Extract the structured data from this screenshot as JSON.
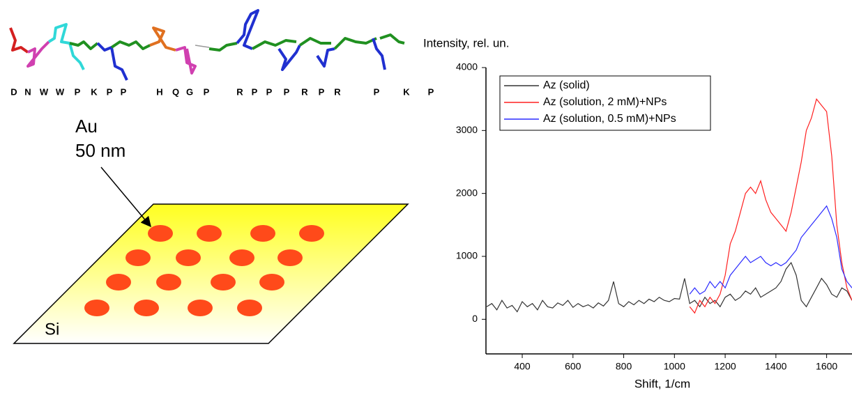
{
  "diagram": {
    "residues": [
      "D",
      "N",
      "W",
      "W",
      "P",
      "K",
      "P",
      "P",
      "H",
      "Q",
      "G",
      "P",
      "R",
      "P",
      "P",
      "P",
      "R",
      "P",
      "R",
      "P",
      "K",
      "P"
    ],
    "particle_label": "Au\n50 nm",
    "particle_label_lines": [
      "Au",
      "50 nm"
    ],
    "substrate_label": "Si"
  },
  "chart_data": {
    "type": "line",
    "y_label": "Intensity, rel. un.",
    "x_label": "Shift, 1/cm",
    "x": [
      260,
      280,
      300,
      320,
      340,
      360,
      380,
      400,
      420,
      440,
      460,
      480,
      500,
      520,
      540,
      560,
      580,
      600,
      620,
      640,
      660,
      680,
      700,
      720,
      740,
      760,
      780,
      800,
      820,
      840,
      860,
      880,
      900,
      920,
      940,
      960,
      980,
      1000,
      1020,
      1040,
      1060,
      1080,
      1100,
      1120,
      1140,
      1160,
      1180,
      1200,
      1220,
      1240,
      1260,
      1280,
      1300,
      1320,
      1340,
      1360,
      1380,
      1400,
      1420,
      1440,
      1460,
      1480,
      1500,
      1520,
      1540,
      1560,
      1580,
      1600,
      1620,
      1640,
      1660,
      1680,
      1700
    ],
    "series": [
      {
        "name": "Az (solid)",
        "color": "#333333",
        "values": [
          200,
          250,
          150,
          300,
          180,
          220,
          120,
          280,
          200,
          250,
          150,
          300,
          200,
          180,
          260,
          220,
          300,
          190,
          250,
          200,
          230,
          180,
          260,
          210,
          300,
          600,
          250,
          200,
          280,
          230,
          300,
          250,
          320,
          280,
          350,
          300,
          280,
          330,
          320,
          650,
          250,
          300,
          200,
          350,
          250,
          300,
          200,
          350,
          400,
          300,
          350,
          450,
          400,
          500,
          350,
          400,
          450,
          500,
          600,
          800,
          900,
          700,
          300,
          200,
          350,
          500,
          650,
          550,
          400,
          350,
          500,
          450,
          300
        ]
      },
      {
        "name": "Az (solution, 2 mM)+NPs",
        "color": "#ff2020",
        "values": [
          null,
          null,
          null,
          null,
          null,
          null,
          null,
          null,
          null,
          null,
          null,
          null,
          null,
          null,
          null,
          null,
          null,
          null,
          null,
          null,
          null,
          null,
          null,
          null,
          null,
          null,
          null,
          null,
          null,
          null,
          null,
          null,
          null,
          null,
          null,
          null,
          null,
          null,
          null,
          null,
          200,
          100,
          300,
          200,
          350,
          250,
          400,
          700,
          1200,
          1400,
          1700,
          2000,
          2100,
          2000,
          2200,
          1900,
          1700,
          1600,
          1500,
          1400,
          1700,
          2100,
          2500,
          3000,
          3200,
          3500,
          3400,
          3300,
          2600,
          1500,
          900,
          500,
          300
        ]
      },
      {
        "name": "Az (solution, 0.5 mM)+NPs",
        "color": "#2a2aff",
        "values": [
          null,
          null,
          null,
          null,
          null,
          null,
          null,
          null,
          null,
          null,
          null,
          null,
          null,
          null,
          null,
          null,
          null,
          null,
          null,
          null,
          null,
          null,
          null,
          null,
          null,
          null,
          null,
          null,
          null,
          null,
          null,
          null,
          null,
          null,
          null,
          null,
          null,
          null,
          null,
          null,
          400,
          500,
          400,
          450,
          600,
          500,
          600,
          500,
          700,
          800,
          900,
          1000,
          900,
          950,
          1000,
          900,
          850,
          900,
          850,
          900,
          1000,
          1100,
          1300,
          1400,
          1500,
          1600,
          1700,
          1800,
          1600,
          1300,
          800,
          600,
          500
        ]
      }
    ],
    "xlim": [
      257,
      1700
    ],
    "xticks": [
      400,
      600,
      800,
      1000,
      1200,
      1400,
      1600
    ],
    "ylim": [
      -550,
      4000
    ],
    "yticks": [
      0,
      1000,
      2000,
      3000,
      4000
    ],
    "legend": "upper left"
  }
}
